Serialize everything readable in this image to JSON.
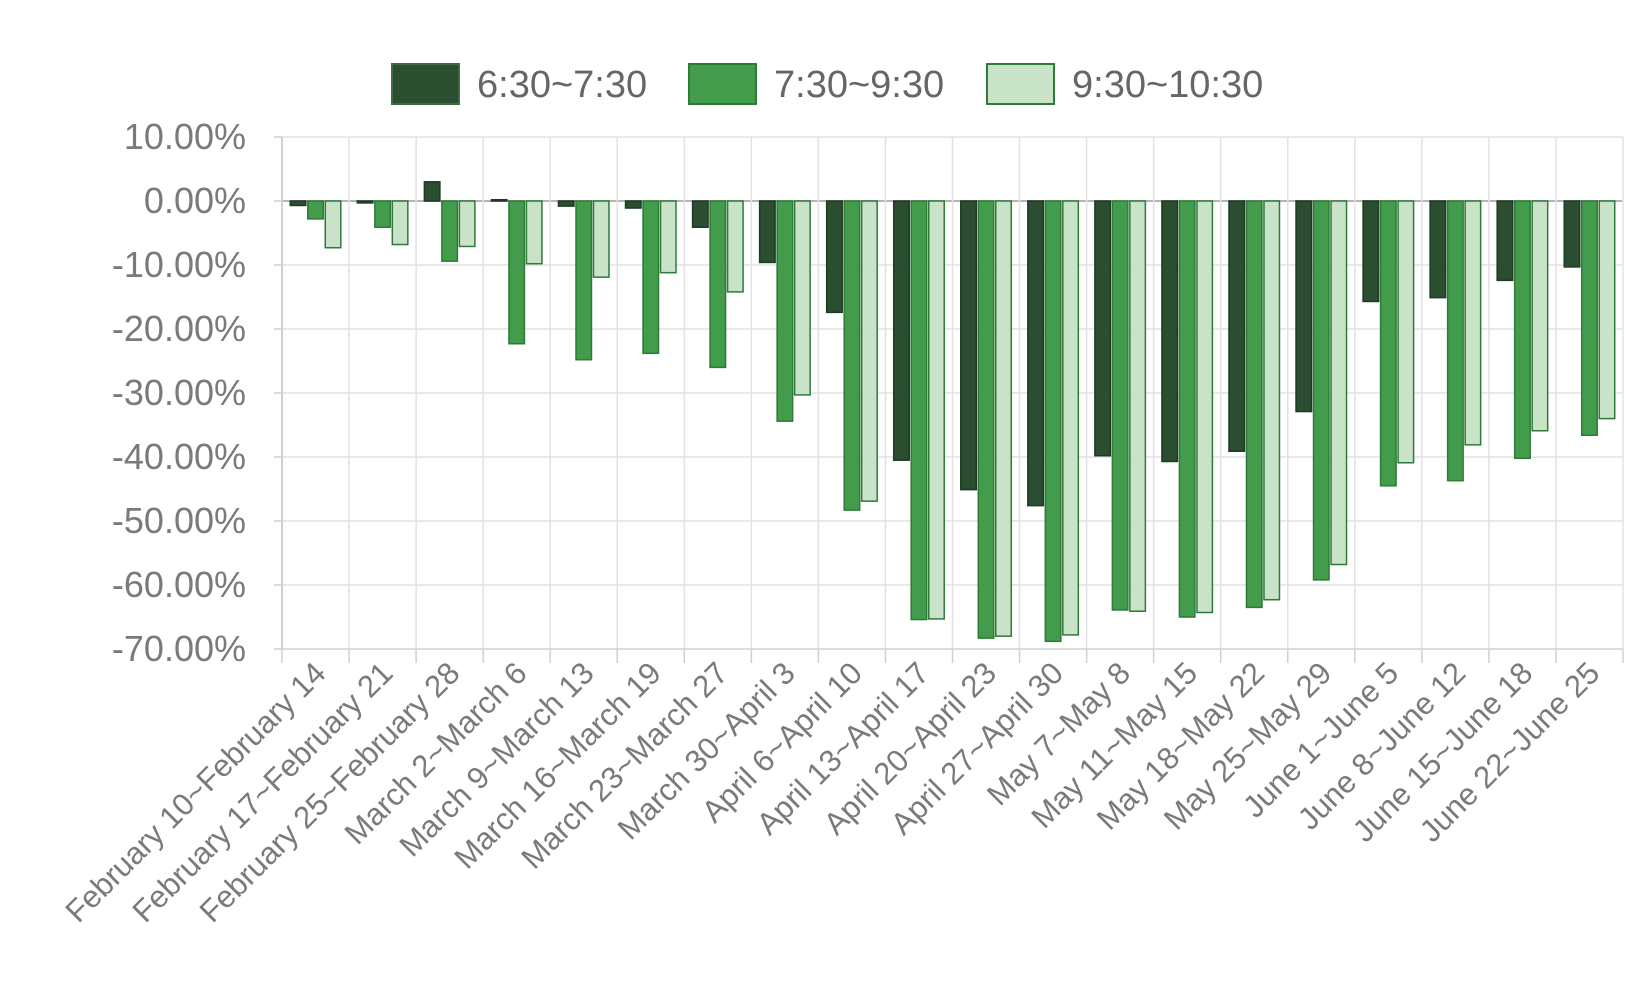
{
  "chart_data": {
    "type": "bar",
    "title": "",
    "xlabel": "",
    "ylabel": "",
    "ylim": [
      -70,
      10
    ],
    "y_ticks": [
      10,
      0,
      -10,
      -20,
      -30,
      -40,
      -50,
      -60,
      -70
    ],
    "y_tick_labels": [
      "10.00%",
      "0.00%",
      "-10.00%",
      "-20.00%",
      "-30.00%",
      "-40.00%",
      "-50.00%",
      "-60.00%",
      "-70.00%"
    ],
    "grid": true,
    "legend_position": "top",
    "categories": [
      "February 10~February 14",
      "February 17~February 21",
      "February 25~February 28",
      "March 2~March 6",
      "March 9~March 13",
      "March 16~March 19",
      "March 23~March 27",
      "March 30~April 3",
      "April 6~April 10",
      "April 13~April 17",
      "April 20~April 23",
      "April 27~April 30",
      "May 7~May 8",
      "May 11~May 15",
      "May 18~May 22",
      "May 25~May 29",
      "June 1~June 5",
      "June 8~June 12",
      "June 15~June 18",
      "June 22~June 25"
    ],
    "series": [
      {
        "name": "6:30~7:30",
        "color": "#2b4d30",
        "values": [
          -0.7,
          -0.3,
          3.0,
          0.2,
          -0.8,
          -1.1,
          -4.1,
          -9.6,
          -17.4,
          -40.5,
          -45.1,
          -47.6,
          -39.8,
          -40.7,
          -39.1,
          -32.9,
          -15.7,
          -15.1,
          -12.4,
          -10.3
        ]
      },
      {
        "name": "7:30~9:30",
        "color": "#439c4c",
        "values": [
          -2.8,
          -4.1,
          -9.4,
          -22.3,
          -24.8,
          -23.8,
          -26.0,
          -34.4,
          -48.3,
          -65.4,
          -68.3,
          -68.8,
          -63.9,
          -65.0,
          -63.5,
          -59.2,
          -44.5,
          -43.7,
          -40.2,
          -36.6
        ]
      },
      {
        "name": "9:30~10:30",
        "color": "#c9e3c8",
        "values": [
          -7.3,
          -6.8,
          -7.1,
          -9.8,
          -11.9,
          -11.2,
          -14.2,
          -30.3,
          -46.9,
          -65.3,
          -68.0,
          -67.8,
          -64.1,
          -64.3,
          -62.3,
          -56.8,
          -40.9,
          -38.1,
          -35.9,
          -34.0
        ]
      }
    ]
  }
}
